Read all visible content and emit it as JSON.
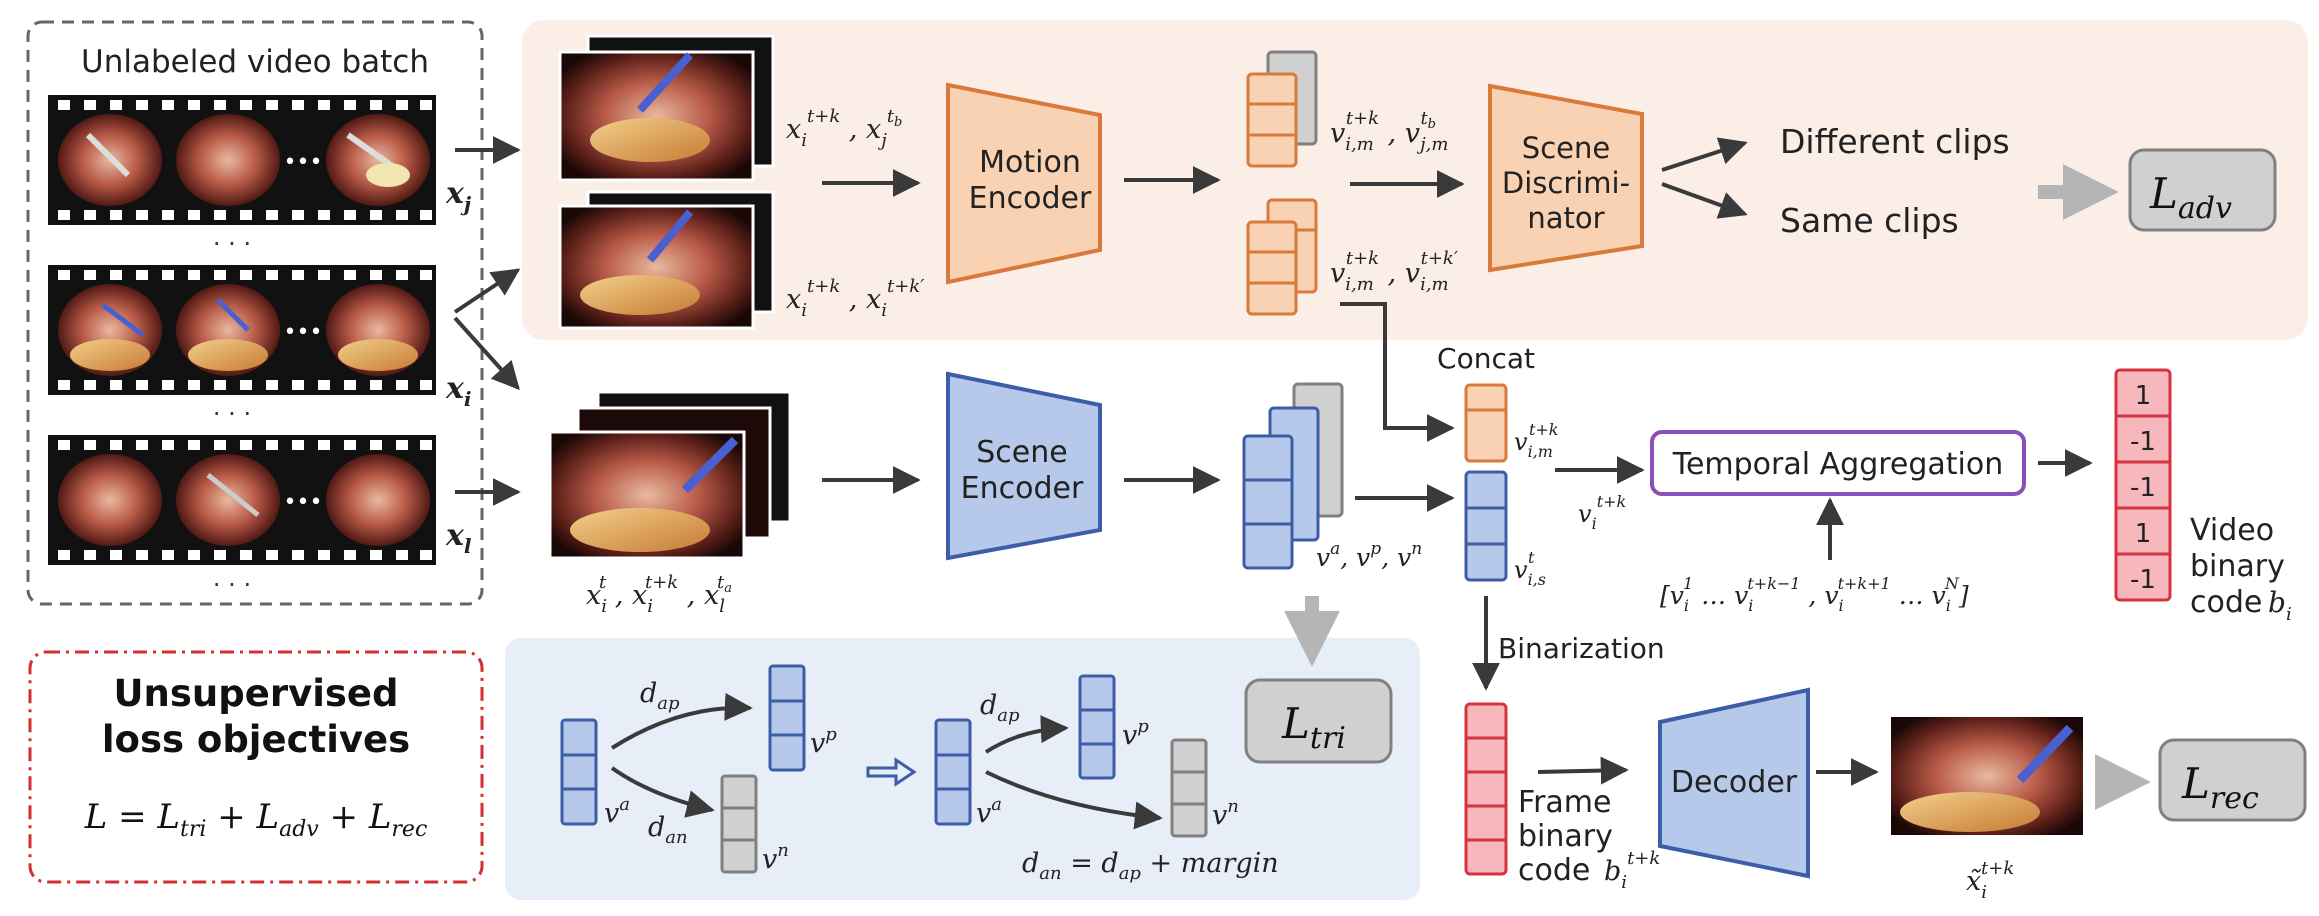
{
  "video_batch": {
    "title": "Unlabeled video batch",
    "strips": [
      {
        "var": "x",
        "sub": "j"
      },
      {
        "var": "x",
        "sub": "i"
      },
      {
        "var": "x",
        "sub": "l"
      }
    ],
    "dots": "· · ·",
    "inner_dots": "•••"
  },
  "loss_box": {
    "title_line1": "Unsupervised",
    "title_line2": "loss objectives",
    "formula": "L = L_tri + L_adv + L_rec"
  },
  "motion_branch": {
    "encoder_label": [
      "Motion",
      "Encoder"
    ],
    "discriminator_label": [
      "Scene",
      "Discrimi-",
      "nator"
    ],
    "input_top": {
      "main": "x",
      "sub": "i",
      "sup": "t+k",
      "main2": "x",
      "sub2": "j",
      "sup2": "t_b"
    },
    "input_bottom": {
      "main": "x",
      "sub": "i",
      "sup": "t+k",
      "main2": "x",
      "sub2": "i",
      "sup2": "t+k′"
    },
    "feat_top": {
      "main": "v",
      "sub": "i,m",
      "sup": "t+k",
      "main2": "v",
      "sub2": "j,m",
      "sup2": "t_b"
    },
    "feat_bottom": {
      "main": "v",
      "sub": "i,m",
      "sup": "t+k",
      "main2": "v",
      "sub2": "i,m",
      "sup2": "t+k′"
    },
    "out_different": "Different clips",
    "out_same": "Same clips",
    "loss": {
      "main": "L",
      "sub": "adv"
    }
  },
  "scene_branch": {
    "encoder_label": [
      "Scene",
      "Encoder"
    ],
    "input_label": {
      "a": "x",
      "a_sub": "i",
      "a_sup": "t",
      "b": "x",
      "b_sub": "i",
      "b_sup": "t+k",
      "c": "x",
      "c_sub": "l",
      "c_sup": "t_a"
    },
    "feat_label": "v^a, v^p, v^n",
    "concat_label": "Concat",
    "concat_top": {
      "main": "v",
      "sub": "i,m",
      "sup": "t+k"
    },
    "concat_bottom": {
      "main": "v",
      "sub": "i,s",
      "sup": "t"
    },
    "agg_input": {
      "main": "v",
      "sub": "i",
      "sup": "t+k"
    },
    "temporal_label": "Temporal Aggregation",
    "seq_label": "[v_i^1 … v_i^{t+k−1} , v_i^{t+k+1} … v_i^N]",
    "binary_values": [
      "1",
      "-1",
      "-1",
      "1",
      "-1"
    ],
    "video_code_label": [
      "Video",
      "binary",
      "code"
    ],
    "video_code_var": {
      "main": "b",
      "sub": "i"
    }
  },
  "triplet_panel": {
    "d_ap": {
      "main": "d",
      "sub": "ap"
    },
    "d_an": {
      "main": "d",
      "sub": "an"
    },
    "va": {
      "main": "v",
      "sup": "a"
    },
    "vp": {
      "main": "v",
      "sup": "p"
    },
    "vn": {
      "main": "v",
      "sup": "n"
    },
    "margin_formula": "d_an = d_ap + margin",
    "loss": {
      "main": "L",
      "sub": "tri"
    }
  },
  "recon_branch": {
    "binarization_label": "Binarization",
    "frame_code_label": [
      "Frame",
      "binary",
      "code"
    ],
    "frame_code_var": {
      "main": "b",
      "sub": "i",
      "sup": "t+k"
    },
    "decoder_label": "Decoder",
    "recon_var": {
      "main": "x̃",
      "sub": "i",
      "sup": "t+k"
    },
    "loss": {
      "main": "L",
      "sub": "rec"
    }
  },
  "colors": {
    "motion_fill": "#f8d2b3",
    "motion_stroke": "#d97a3a",
    "scene_fill": "#b7c9ea",
    "scene_stroke": "#3c5da8",
    "gray_fill": "#d0d0d0",
    "gray_stroke": "#808080",
    "red_fill": "#f7b8bd",
    "red_stroke": "#d6333e",
    "purple_stroke": "#8b4fb8",
    "motion_bg": "#fbeee6",
    "triplet_bg": "#e8eef8",
    "loss_box_stroke": "#d32f2f"
  }
}
